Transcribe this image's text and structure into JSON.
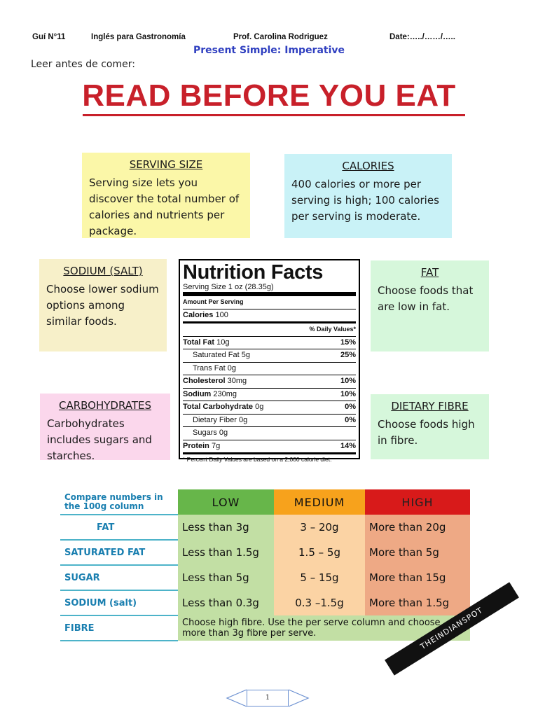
{
  "header": {
    "guide": "Guí N°11",
    "course": "Inglés para Gastronomía",
    "teacher": "Prof. Carolina Rodriguez",
    "date": "Date:…../……/…..",
    "subtitle": "Present Simple: Imperative",
    "intro": "Leer antes de comer:"
  },
  "main_title": "READ BEFORE YOU EAT",
  "boxes": {
    "serving": {
      "title": "SERVING SIZE",
      "text": "Serving size lets you discover the total number of calories and nutrients per package."
    },
    "calories": {
      "title": "CALORIES",
      "text": "400 calories or more per serving is high; 100 calories per serving is moderate."
    },
    "sodium": {
      "title": "SODIUM (SALT)",
      "text": "Choose lower sodium options among similar foods."
    },
    "fat": {
      "title": "FAT",
      "text": "Choose foods that are low in fat."
    },
    "carbs": {
      "title": "CARBOHYDRATES",
      "text": "Carbohydrates includes sugars and starches."
    },
    "fibre": {
      "title": "DIETARY FIBRE",
      "text": "Choose foods high in fibre."
    }
  },
  "colors": {
    "title_red": "#c8202a",
    "subtitle_blue": "#2f3fc0",
    "low": "#67b64a",
    "medium": "#f7a21c",
    "high": "#d81a1a"
  },
  "nutrition": {
    "title": "Nutrition Facts",
    "serving": "Serving Size 1 oz (28.35g)",
    "amount": "Amount Per Serving",
    "calories_label": "Calories",
    "calories_value": "100",
    "dv_header": "% Daily Values*",
    "rows": [
      {
        "label": "Total Fat",
        "amount": "10g",
        "dv": "15%",
        "bold": true
      },
      {
        "label": "Saturated Fat",
        "amount": "5g",
        "dv": "25%",
        "bold": false
      },
      {
        "label": "Trans Fat",
        "amount": "0g",
        "dv": "",
        "bold": false
      },
      {
        "label": "Cholesterol",
        "amount": "30mg",
        "dv": "10%",
        "bold": true
      },
      {
        "label": "Sodium",
        "amount": "230mg",
        "dv": "10%",
        "bold": true
      },
      {
        "label": "Total Carbohydrate",
        "amount": "0g",
        "dv": "0%",
        "bold": true
      },
      {
        "label": "Dietary Fiber",
        "amount": "0g",
        "dv": "0%",
        "bold": false
      },
      {
        "label": "Sugars",
        "amount": "0g",
        "dv": "",
        "bold": false
      },
      {
        "label": "Protein",
        "amount": "7g",
        "dv": "14%",
        "bold": true
      }
    ],
    "footnote": "* Percent Daily Values are based on a 2,000 calorie diet."
  },
  "compare": {
    "header_label": "Compare numbers in the 100g column",
    "low": "LOW",
    "medium": "MEDIUM",
    "high": "HIGH",
    "rows": [
      {
        "label": "FAT",
        "low": "Less than 3g",
        "medium": "3 – 20g",
        "high": "More than 20g"
      },
      {
        "label": "SATURATED FAT",
        "low": "Less than 1.5g",
        "medium": "1.5 – 5g",
        "high": "More than 5g"
      },
      {
        "label": "SUGAR",
        "low": "Less than 5g",
        "medium": "5 – 15g",
        "high": "More than 15g"
      },
      {
        "label": "SODIUM (salt)",
        "low": "Less than 0.3g",
        "medium": "0.3 –1.5g",
        "high": "More than 1.5g"
      }
    ],
    "fibre_label": "FIBRE",
    "fibre_text": "Choose high fibre. Use the per serve column and choose more than 3g fibre per serve."
  },
  "watermark": "THEINDIANSPOT",
  "page_number": "1"
}
